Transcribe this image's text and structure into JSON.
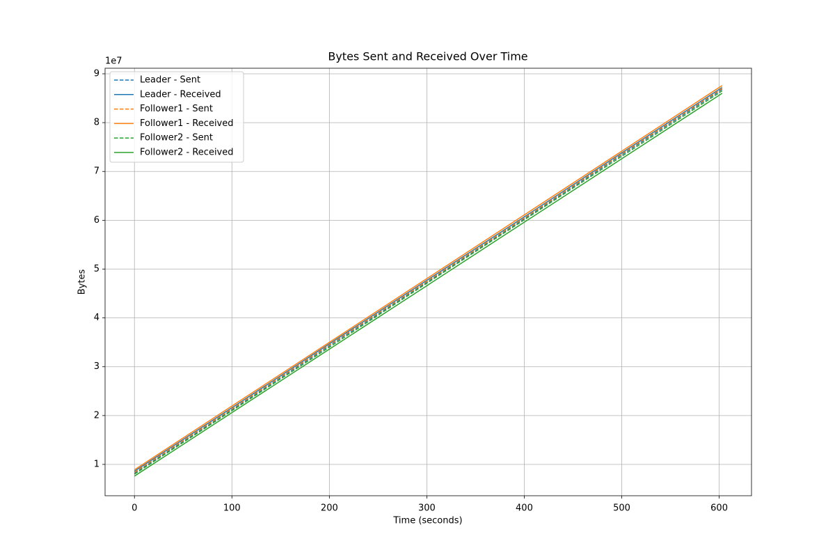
{
  "chart_data": {
    "type": "line",
    "title": "Bytes Sent and Received Over Time",
    "x_label": "Time (seconds)",
    "y_label": "Bytes",
    "y_offset_text": "1e7",
    "x": [
      0,
      100,
      200,
      300,
      400,
      500,
      603
    ],
    "xlim": [
      -30.15,
      633.15
    ],
    "xticks": [
      0,
      100,
      200,
      300,
      400,
      500,
      600
    ],
    "ylim": [
      3580000,
      91140000
    ],
    "yticks": [
      {
        "value": 10000000,
        "label": "1"
      },
      {
        "value": 20000000,
        "label": "2"
      },
      {
        "value": 30000000,
        "label": "3"
      },
      {
        "value": 40000000,
        "label": "4"
      },
      {
        "value": 50000000,
        "label": "5"
      },
      {
        "value": 60000000,
        "label": "6"
      },
      {
        "value": 70000000,
        "label": "7"
      },
      {
        "value": 80000000,
        "label": "8"
      },
      {
        "value": 90000000,
        "label": "9"
      }
    ],
    "grid": true,
    "legend_position": "upper-left",
    "series": [
      {
        "name": "Leader - Sent",
        "color": "#1f77b4",
        "linestyle": "dashed",
        "values": [
          8200000,
          21200000,
          34300000,
          47300000,
          60300000,
          73400000,
          86800000
        ]
      },
      {
        "name": "Leader - Received",
        "color": "#1f77b4",
        "linestyle": "solid",
        "values": [
          8600000,
          21600000,
          34700000,
          47700000,
          60700000,
          73800000,
          87200000
        ]
      },
      {
        "name": "Follower1 - Sent",
        "color": "#ff7f0e",
        "linestyle": "dashed",
        "values": [
          8400000,
          21400000,
          34500000,
          47500000,
          60500000,
          73600000,
          87000000
        ]
      },
      {
        "name": "Follower1 - Received",
        "color": "#ff7f0e",
        "linestyle": "solid",
        "values": [
          8900000,
          21950000,
          35000000,
          48050000,
          61100000,
          74150000,
          87600000
        ]
      },
      {
        "name": "Follower2 - Sent",
        "color": "#2ca02c",
        "linestyle": "dashed",
        "values": [
          8000000,
          21000000,
          34000000,
          47100000,
          60100000,
          73100000,
          86500000
        ]
      },
      {
        "name": "Follower2 - Received",
        "color": "#2ca02c",
        "linestyle": "solid",
        "values": [
          7600000,
          20600000,
          33600000,
          46600000,
          59600000,
          72600000,
          86000000
        ]
      }
    ]
  }
}
